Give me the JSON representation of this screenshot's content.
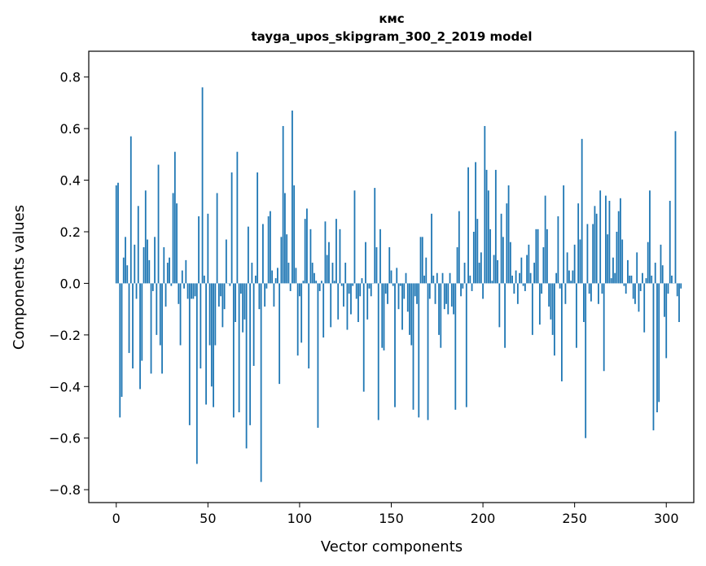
{
  "chart_data": {
    "type": "bar",
    "title": "кмс",
    "subtitle": "tayga_upos_skipgram_300_2_2019 model",
    "xlabel": "Vector components",
    "ylabel": "Components values",
    "xlim": [
      -15,
      315
    ],
    "ylim": [
      -0.85,
      0.9
    ],
    "xticks": [
      0,
      50,
      100,
      150,
      200,
      250,
      300
    ],
    "xtick_labels": [
      "0",
      "50",
      "100",
      "150",
      "200",
      "250",
      "300"
    ],
    "yticks": [
      -0.8,
      -0.6,
      -0.4,
      -0.2,
      0.0,
      0.2,
      0.4,
      0.6,
      0.8
    ],
    "ytick_labels": [
      "−0.8",
      "−0.6",
      "−0.4",
      "−0.2",
      "0.0",
      "0.2",
      "0.4",
      "0.6",
      "0.8"
    ],
    "grid": false,
    "bar_color": "#1f77b4",
    "values": [
      0.38,
      0.39,
      -0.52,
      -0.44,
      0.1,
      0.18,
      0.07,
      -0.27,
      0.57,
      -0.33,
      0.15,
      -0.06,
      0.3,
      -0.41,
      -0.3,
      0.14,
      0.36,
      0.17,
      0.09,
      -0.35,
      -0.03,
      0.18,
      -0.2,
      0.46,
      -0.24,
      -0.35,
      0.14,
      -0.09,
      0.08,
      0.1,
      -0.01,
      0.35,
      0.51,
      0.31,
      -0.08,
      -0.24,
      0.05,
      -0.02,
      0.09,
      -0.06,
      -0.55,
      -0.06,
      -0.06,
      -0.05,
      -0.7,
      0.26,
      -0.33,
      0.76,
      0.03,
      -0.47,
      0.27,
      -0.24,
      -0.4,
      -0.48,
      -0.24,
      0.35,
      -0.09,
      -0.05,
      -0.17,
      -0.1,
      0.17,
      0.0,
      -0.01,
      0.43,
      -0.52,
      -0.15,
      0.51,
      -0.5,
      -0.04,
      -0.19,
      -0.14,
      -0.64,
      0.22,
      -0.55,
      0.08,
      -0.32,
      0.03,
      0.43,
      -0.1,
      -0.77,
      0.23,
      -0.09,
      -0.02,
      0.26,
      0.28,
      0.05,
      -0.09,
      0.02,
      0.06,
      -0.39,
      0.18,
      0.61,
      0.35,
      0.19,
      0.08,
      -0.03,
      0.67,
      0.38,
      0.06,
      -0.28,
      -0.05,
      -0.23,
      0.01,
      0.25,
      0.29,
      -0.33,
      0.21,
      0.08,
      0.04,
      0.01,
      -0.56,
      -0.03,
      0.01,
      -0.21,
      0.24,
      0.11,
      0.16,
      -0.17,
      0.08,
      0.01,
      0.25,
      -0.14,
      0.21,
      -0.01,
      -0.09,
      0.08,
      -0.18,
      -0.04,
      -0.12,
      -0.01,
      0.36,
      -0.06,
      -0.15,
      -0.05,
      0.02,
      -0.42,
      0.16,
      -0.14,
      -0.02,
      -0.05,
      0.0,
      0.37,
      0.14,
      -0.53,
      0.21,
      -0.25,
      -0.26,
      -0.04,
      -0.08,
      0.14,
      0.05,
      -0.01,
      -0.48,
      0.06,
      -0.1,
      -0.01,
      -0.18,
      -0.06,
      0.04,
      -0.11,
      -0.2,
      -0.24,
      -0.49,
      -0.05,
      -0.08,
      -0.52,
      0.18,
      0.18,
      0.03,
      0.1,
      -0.53,
      -0.06,
      0.27,
      0.03,
      -0.08,
      0.04,
      -0.2,
      -0.25,
      0.04,
      -0.1,
      -0.08,
      -0.12,
      0.04,
      -0.09,
      -0.12,
      -0.49,
      0.14,
      0.28,
      -0.05,
      -0.02,
      0.08,
      -0.48,
      0.45,
      0.03,
      -0.03,
      0.2,
      0.47,
      0.25,
      0.08,
      0.12,
      -0.06,
      0.61,
      0.44,
      0.36,
      0.21,
      0.01,
      0.11,
      0.44,
      0.09,
      -0.17,
      0.27,
      0.18,
      -0.25,
      0.31,
      0.38,
      0.16,
      0.03,
      -0.04,
      0.05,
      -0.08,
      0.04,
      0.1,
      -0.01,
      -0.03,
      0.11,
      0.15,
      0.04,
      -0.2,
      0.08,
      0.21,
      0.21,
      -0.16,
      -0.04,
      0.14,
      0.34,
      0.21,
      -0.09,
      -0.14,
      -0.2,
      -0.28,
      0.04,
      0.26,
      -0.02,
      -0.38,
      0.38,
      -0.08,
      0.12,
      0.05,
      0.01,
      0.05,
      0.15,
      -0.25,
      0.31,
      0.17,
      0.56,
      -0.15,
      -0.6,
      0.23,
      -0.04,
      -0.07,
      0.23,
      0.3,
      0.27,
      -0.08,
      0.36,
      -0.04,
      -0.34,
      0.34,
      0.19,
      0.32,
      0.02,
      0.1,
      0.04,
      0.2,
      0.28,
      0.33,
      0.17,
      -0.01,
      -0.04,
      0.09,
      0.03,
      0.03,
      -0.06,
      -0.08,
      0.12,
      -0.11,
      -0.03,
      0.04,
      -0.19,
      0.02,
      0.16,
      0.36,
      0.03,
      -0.57,
      0.08,
      -0.5,
      -0.46,
      0.15,
      0.07,
      -0.13,
      -0.29,
      -0.04,
      0.32,
      0.03,
      0.0,
      0.59,
      -0.05,
      -0.15,
      -0.02
    ]
  }
}
